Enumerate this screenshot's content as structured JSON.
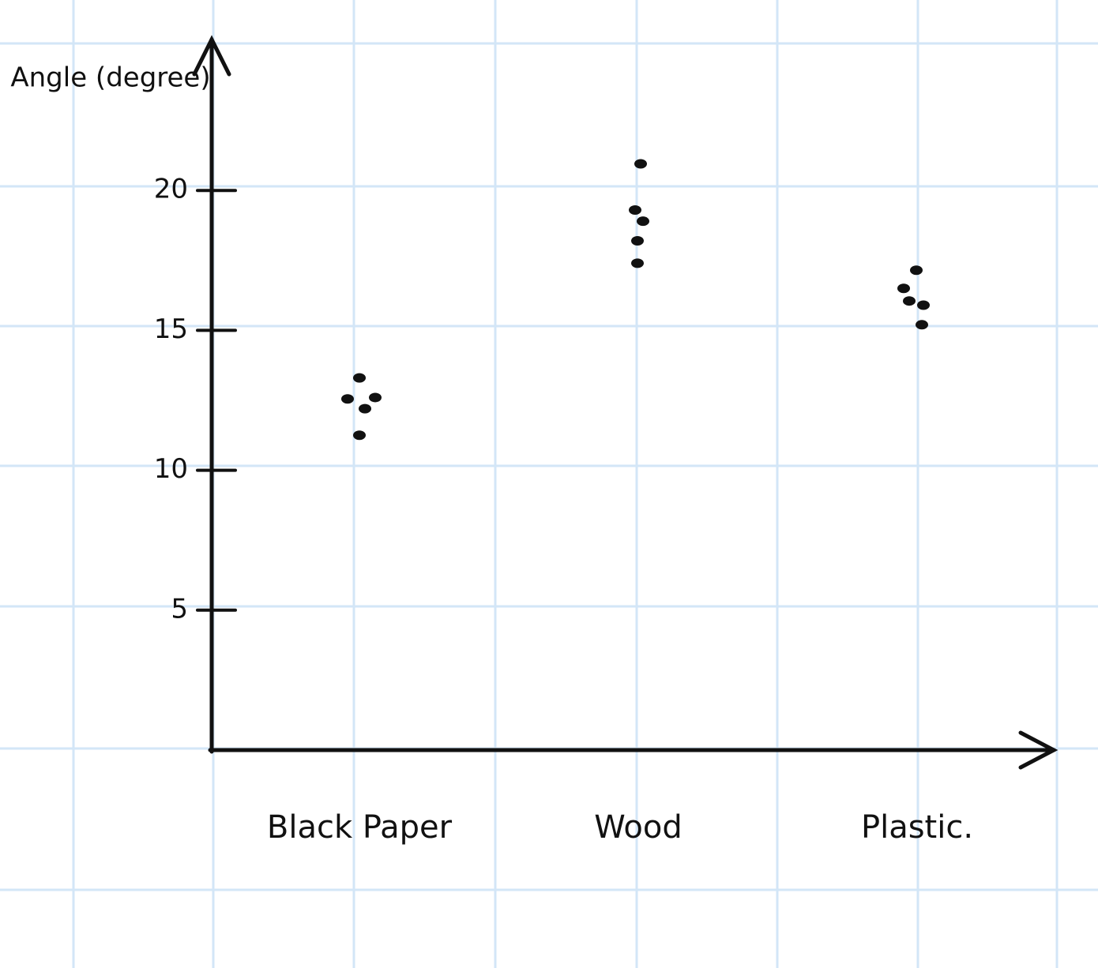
{
  "chart_data": {
    "type": "strip",
    "y_label": "Angle (degree)",
    "categories": [
      "Black Paper",
      "Wood",
      "Plastic."
    ],
    "values": [
      [
        13.3,
        12.55,
        12.6,
        12.2,
        11.25
      ],
      [
        20.95,
        19.3,
        18.9,
        18.2,
        17.4
      ],
      [
        17.15,
        16.5,
        16.05,
        15.9,
        15.2
      ]
    ],
    "color": "#111111",
    "ylim": [
      0,
      25
    ],
    "yticks": [
      5,
      10,
      15,
      20
    ]
  }
}
